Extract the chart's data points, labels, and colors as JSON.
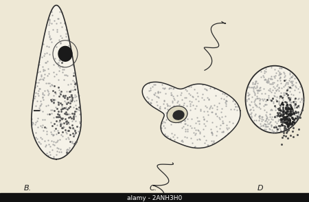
{
  "background_color": "#eee8d5",
  "figure_bg": "#eee8d5",
  "watermark_text": "alamy - 2ANH3H0",
  "watermark_bg": "#111111",
  "watermark_color": "#ffffff",
  "labels": [
    "B.",
    "C.",
    "D"
  ],
  "outline_color": "#2a2a2a",
  "fill_color": "#f5f2e8",
  "dot_color": "#999999",
  "nucleus_dark": "#1a1a1a",
  "chromatin_color": "#444444"
}
